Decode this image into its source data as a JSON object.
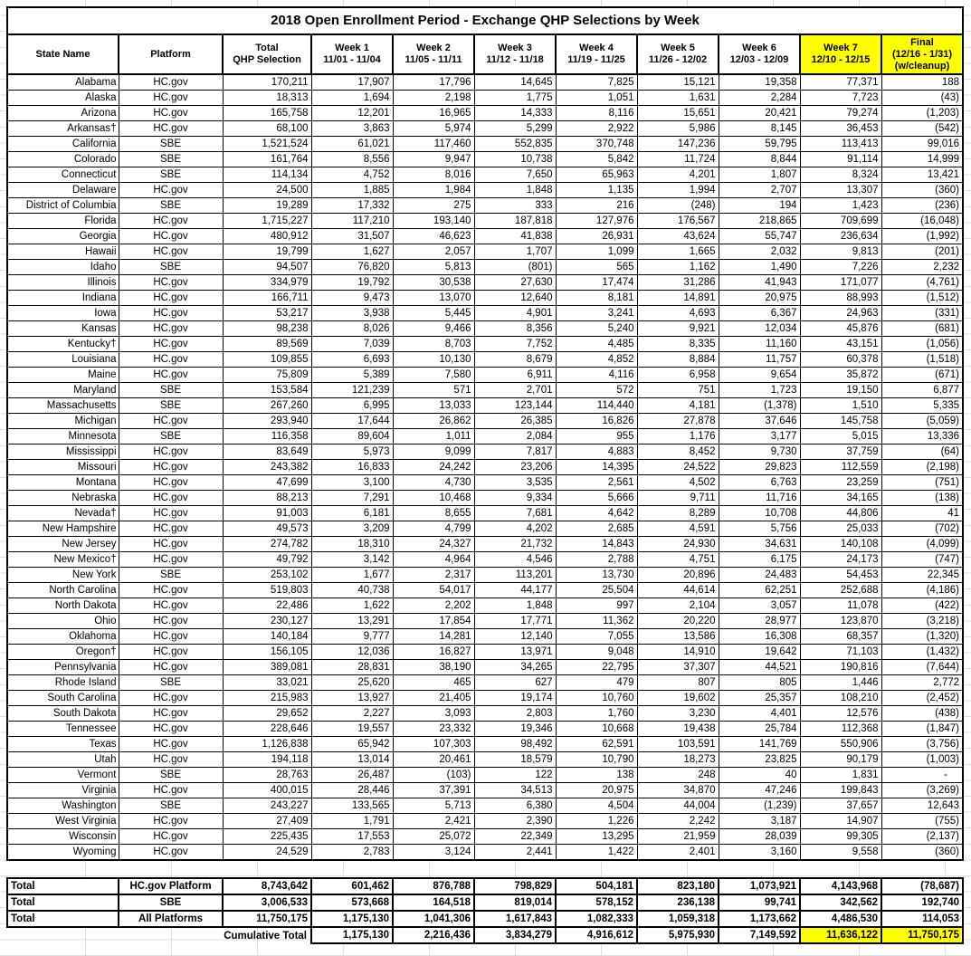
{
  "colors": {
    "highlight": "#ffff00",
    "border": "#000000",
    "gridline": "#dcdcdc",
    "text": "#000000",
    "background": "#ffffff"
  },
  "table": {
    "title": "2018 Open Enrollment Period - Exchange QHP Selections by Week",
    "headers": [
      {
        "lines": [
          "State Name"
        ],
        "highlight": false
      },
      {
        "lines": [
          "Platform"
        ],
        "highlight": false
      },
      {
        "lines": [
          "Total",
          "QHP Selection"
        ],
        "highlight": false
      },
      {
        "lines": [
          "Week 1",
          "11/01 - 11/04"
        ],
        "highlight": false
      },
      {
        "lines": [
          "Week 2",
          "11/05 - 11/11"
        ],
        "highlight": false
      },
      {
        "lines": [
          "Week 3",
          "11/12 - 11/18"
        ],
        "highlight": false
      },
      {
        "lines": [
          "Week 4",
          "11/19 - 11/25"
        ],
        "highlight": false
      },
      {
        "lines": [
          "Week 5",
          "11/26 - 12/02"
        ],
        "highlight": false
      },
      {
        "lines": [
          "Week 6",
          "12/03 - 12/09"
        ],
        "highlight": false
      },
      {
        "lines": [
          "Week 7",
          "12/10 - 12/15"
        ],
        "highlight": true
      },
      {
        "lines": [
          "Final",
          "(12/16 - 1/31)",
          "(w/cleanup)"
        ],
        "highlight": true
      }
    ],
    "rows": [
      {
        "state": "Alabama",
        "platform": "HC.gov",
        "values": [
          "170,211",
          "17,907",
          "17,796",
          "14,645",
          "7,825",
          "15,121",
          "19,358",
          "77,371",
          "188"
        ]
      },
      {
        "state": "Alaska",
        "platform": "HC.gov",
        "values": [
          "18,313",
          "1,694",
          "2,198",
          "1,775",
          "1,051",
          "1,631",
          "2,284",
          "7,723",
          "(43)"
        ]
      },
      {
        "state": "Arizona",
        "platform": "HC.gov",
        "values": [
          "165,758",
          "12,201",
          "16,965",
          "14,333",
          "8,116",
          "15,651",
          "20,421",
          "79,274",
          "(1,203)"
        ]
      },
      {
        "state": "Arkansas†",
        "platform": "HC.gov",
        "values": [
          "68,100",
          "3,863",
          "5,974",
          "5,299",
          "2,922",
          "5,986",
          "8,145",
          "36,453",
          "(542)"
        ]
      },
      {
        "state": "California",
        "platform": "SBE",
        "values": [
          "1,521,524",
          "61,021",
          "117,460",
          "552,835",
          "370,748",
          "147,236",
          "59,795",
          "113,413",
          "99,016"
        ]
      },
      {
        "state": "Colorado",
        "platform": "SBE",
        "values": [
          "161,764",
          "8,556",
          "9,947",
          "10,738",
          "5,842",
          "11,724",
          "8,844",
          "91,114",
          "14,999"
        ]
      },
      {
        "state": "Connecticut",
        "platform": "SBE",
        "values": [
          "114,134",
          "4,752",
          "8,016",
          "7,650",
          "65,963",
          "4,201",
          "1,807",
          "8,324",
          "13,421"
        ]
      },
      {
        "state": "Delaware",
        "platform": "HC.gov",
        "values": [
          "24,500",
          "1,885",
          "1,984",
          "1,848",
          "1,135",
          "1,994",
          "2,707",
          "13,307",
          "(360)"
        ]
      },
      {
        "state": "District of Columbia",
        "platform": "SBE",
        "values": [
          "19,289",
          "17,332",
          "275",
          "333",
          "216",
          "(248)",
          "194",
          "1,423",
          "(236)"
        ]
      },
      {
        "state": "Florida",
        "platform": "HC.gov",
        "values": [
          "1,715,227",
          "117,210",
          "193,140",
          "187,818",
          "127,976",
          "176,567",
          "218,865",
          "709,699",
          "(16,048)"
        ]
      },
      {
        "state": "Georgia",
        "platform": "HC.gov",
        "values": [
          "480,912",
          "31,507",
          "46,623",
          "41,838",
          "26,931",
          "43,624",
          "55,747",
          "236,634",
          "(1,992)"
        ]
      },
      {
        "state": "Hawaii",
        "platform": "HC.gov",
        "values": [
          "19,799",
          "1,627",
          "2,057",
          "1,707",
          "1,099",
          "1,665",
          "2,032",
          "9,813",
          "(201)"
        ]
      },
      {
        "state": "Idaho",
        "platform": "SBE",
        "values": [
          "94,507",
          "76,820",
          "5,813",
          "(801)",
          "565",
          "1,162",
          "1,490",
          "7,226",
          "2,232"
        ]
      },
      {
        "state": "Illinois",
        "platform": "HC.gov",
        "values": [
          "334,979",
          "19,792",
          "30,538",
          "27,630",
          "17,474",
          "31,286",
          "41,943",
          "171,077",
          "(4,761)"
        ]
      },
      {
        "state": "Indiana",
        "platform": "HC.gov",
        "values": [
          "166,711",
          "9,473",
          "13,070",
          "12,640",
          "8,181",
          "14,891",
          "20,975",
          "88,993",
          "(1,512)"
        ]
      },
      {
        "state": "Iowa",
        "platform": "HC.gov",
        "values": [
          "53,217",
          "3,938",
          "5,445",
          "4,901",
          "3,241",
          "4,693",
          "6,367",
          "24,963",
          "(331)"
        ]
      },
      {
        "state": "Kansas",
        "platform": "HC.gov",
        "values": [
          "98,238",
          "8,026",
          "9,466",
          "8,356",
          "5,240",
          "9,921",
          "12,034",
          "45,876",
          "(681)"
        ]
      },
      {
        "state": "Kentucky†",
        "platform": "HC.gov",
        "values": [
          "89,569",
          "7,039",
          "8,703",
          "7,752",
          "4,485",
          "8,335",
          "11,160",
          "43,151",
          "(1,056)"
        ]
      },
      {
        "state": "Louisiana",
        "platform": "HC.gov",
        "values": [
          "109,855",
          "6,693",
          "10,130",
          "8,679",
          "4,852",
          "8,884",
          "11,757",
          "60,378",
          "(1,518)"
        ]
      },
      {
        "state": "Maine",
        "platform": "HC.gov",
        "values": [
          "75,809",
          "5,389",
          "7,580",
          "6,911",
          "4,116",
          "6,958",
          "9,654",
          "35,872",
          "(671)"
        ]
      },
      {
        "state": "Maryland",
        "platform": "SBE",
        "values": [
          "153,584",
          "121,239",
          "571",
          "2,701",
          "572",
          "751",
          "1,723",
          "19,150",
          "6,877"
        ]
      },
      {
        "state": "Massachusetts",
        "platform": "SBE",
        "values": [
          "267,260",
          "6,995",
          "13,033",
          "123,144",
          "114,440",
          "4,181",
          "(1,378)",
          "1,510",
          "5,335"
        ]
      },
      {
        "state": "Michigan",
        "platform": "HC.gov",
        "values": [
          "293,940",
          "17,644",
          "26,862",
          "26,385",
          "16,826",
          "27,878",
          "37,646",
          "145,758",
          "(5,059)"
        ]
      },
      {
        "state": "Minnesota",
        "platform": "SBE",
        "values": [
          "116,358",
          "89,604",
          "1,011",
          "2,084",
          "955",
          "1,176",
          "3,177",
          "5,015",
          "13,336"
        ]
      },
      {
        "state": "Mississippi",
        "platform": "HC.gov",
        "values": [
          "83,649",
          "5,973",
          "9,099",
          "7,817",
          "4,883",
          "8,452",
          "9,730",
          "37,759",
          "(64)"
        ]
      },
      {
        "state": "Missouri",
        "platform": "HC.gov",
        "values": [
          "243,382",
          "16,833",
          "24,242",
          "23,206",
          "14,395",
          "24,522",
          "29,823",
          "112,559",
          "(2,198)"
        ]
      },
      {
        "state": "Montana",
        "platform": "HC.gov",
        "values": [
          "47,699",
          "3,100",
          "4,730",
          "3,535",
          "2,561",
          "4,502",
          "6,763",
          "23,259",
          "(751)"
        ]
      },
      {
        "state": "Nebraska",
        "platform": "HC.gov",
        "values": [
          "88,213",
          "7,291",
          "10,468",
          "9,334",
          "5,666",
          "9,711",
          "11,716",
          "34,165",
          "(138)"
        ]
      },
      {
        "state": "Nevada†",
        "platform": "HC.gov",
        "values": [
          "91,003",
          "6,181",
          "8,655",
          "7,681",
          "4,642",
          "8,289",
          "10,708",
          "44,806",
          "41"
        ]
      },
      {
        "state": "New Hampshire",
        "platform": "HC.gov",
        "values": [
          "49,573",
          "3,209",
          "4,799",
          "4,202",
          "2,685",
          "4,591",
          "5,756",
          "25,033",
          "(702)"
        ]
      },
      {
        "state": "New Jersey",
        "platform": "HC.gov",
        "values": [
          "274,782",
          "18,310",
          "24,327",
          "21,732",
          "14,843",
          "24,930",
          "34,631",
          "140,108",
          "(4,099)"
        ]
      },
      {
        "state": "New Mexico†",
        "platform": "HC.gov",
        "values": [
          "49,792",
          "3,142",
          "4,964",
          "4,546",
          "2,788",
          "4,751",
          "6,175",
          "24,173",
          "(747)"
        ]
      },
      {
        "state": "New York",
        "platform": "SBE",
        "values": [
          "253,102",
          "1,677",
          "2,317",
          "113,201",
          "13,730",
          "20,896",
          "24,483",
          "54,453",
          "22,345"
        ]
      },
      {
        "state": "North Carolina",
        "platform": "HC.gov",
        "values": [
          "519,803",
          "40,738",
          "54,017",
          "44,177",
          "25,504",
          "44,614",
          "62,251",
          "252,688",
          "(4,186)"
        ]
      },
      {
        "state": "North Dakota",
        "platform": "HC.gov",
        "values": [
          "22,486",
          "1,622",
          "2,202",
          "1,848",
          "997",
          "2,104",
          "3,057",
          "11,078",
          "(422)"
        ]
      },
      {
        "state": "Ohio",
        "platform": "HC.gov",
        "values": [
          "230,127",
          "13,291",
          "17,854",
          "17,771",
          "11,362",
          "20,220",
          "28,977",
          "123,870",
          "(3,218)"
        ]
      },
      {
        "state": "Oklahoma",
        "platform": "HC.gov",
        "values": [
          "140,184",
          "9,777",
          "14,281",
          "12,140",
          "7,055",
          "13,586",
          "16,308",
          "68,357",
          "(1,320)"
        ]
      },
      {
        "state": "Oregon†",
        "platform": "HC.gov",
        "values": [
          "156,105",
          "12,036",
          "16,827",
          "13,971",
          "9,048",
          "14,910",
          "19,642",
          "71,103",
          "(1,432)"
        ]
      },
      {
        "state": "Pennsylvania",
        "platform": "HC.gov",
        "values": [
          "389,081",
          "28,831",
          "38,190",
          "34,265",
          "22,795",
          "37,307",
          "44,521",
          "190,816",
          "(7,644)"
        ]
      },
      {
        "state": "Rhode Island",
        "platform": "SBE",
        "values": [
          "33,021",
          "25,620",
          "465",
          "627",
          "479",
          "807",
          "805",
          "1,446",
          "2,772"
        ]
      },
      {
        "state": "South Carolina",
        "platform": "HC.gov",
        "values": [
          "215,983",
          "13,927",
          "21,405",
          "19,174",
          "10,760",
          "19,602",
          "25,357",
          "108,210",
          "(2,452)"
        ]
      },
      {
        "state": "South Dakota",
        "platform": "HC.gov",
        "values": [
          "29,652",
          "2,227",
          "3,093",
          "2,803",
          "1,760",
          "3,230",
          "4,401",
          "12,576",
          "(438)"
        ]
      },
      {
        "state": "Tennessee",
        "platform": "HC.gov",
        "values": [
          "228,646",
          "19,557",
          "23,332",
          "19,346",
          "10,668",
          "19,438",
          "25,784",
          "112,368",
          "(1,847)"
        ]
      },
      {
        "state": "Texas",
        "platform": "HC.gov",
        "values": [
          "1,126,838",
          "65,942",
          "107,303",
          "98,492",
          "62,591",
          "103,591",
          "141,769",
          "550,906",
          "(3,756)"
        ]
      },
      {
        "state": "Utah",
        "platform": "HC.gov",
        "values": [
          "194,118",
          "13,014",
          "20,461",
          "18,579",
          "10,790",
          "18,273",
          "23,825",
          "90,179",
          "(1,003)"
        ]
      },
      {
        "state": "Vermont",
        "platform": "SBE",
        "values": [
          "28,763",
          "26,487",
          "(103)",
          "122",
          "138",
          "248",
          "40",
          "1,831",
          "-"
        ]
      },
      {
        "state": "Virginia",
        "platform": "HC.gov",
        "values": [
          "400,015",
          "28,446",
          "37,391",
          "34,513",
          "20,975",
          "34,870",
          "47,246",
          "199,843",
          "(3,269)"
        ]
      },
      {
        "state": "Washington",
        "platform": "SBE",
        "values": [
          "243,227",
          "133,565",
          "5,713",
          "6,380",
          "4,504",
          "44,004",
          "(1,239)",
          "37,657",
          "12,643"
        ]
      },
      {
        "state": "West Virginia",
        "platform": "HC.gov",
        "values": [
          "27,409",
          "1,791",
          "2,421",
          "2,390",
          "1,226",
          "2,242",
          "3,187",
          "14,907",
          "(755)"
        ]
      },
      {
        "state": "Wisconsin",
        "platform": "HC.gov",
        "values": [
          "225,435",
          "17,553",
          "25,072",
          "22,349",
          "13,295",
          "21,959",
          "28,039",
          "99,305",
          "(2,137)"
        ]
      },
      {
        "state": "Wyoming",
        "platform": "HC.gov",
        "values": [
          "24,529",
          "2,783",
          "3,124",
          "2,441",
          "1,422",
          "2,401",
          "3,160",
          "9,558",
          "(360)"
        ]
      }
    ],
    "totals": [
      {
        "label": "Total",
        "platform": "HC.gov Platform",
        "values": [
          "8,743,642",
          "601,462",
          "876,788",
          "798,829",
          "504,181",
          "823,180",
          "1,073,921",
          "4,143,968",
          "(78,687)"
        ]
      },
      {
        "label": "Total",
        "platform": "SBE",
        "values": [
          "3,006,533",
          "573,668",
          "164,518",
          "819,014",
          "578,152",
          "236,138",
          "99,741",
          "342,562",
          "192,740"
        ]
      },
      {
        "label": "Total",
        "platform": "All Platforms",
        "values": [
          "11,750,175",
          "1,175,130",
          "1,041,306",
          "1,617,843",
          "1,082,333",
          "1,059,318",
          "1,173,662",
          "4,486,530",
          "114,053"
        ]
      }
    ],
    "cumulative": {
      "label": "Cumulative Total",
      "values": [
        "1,175,130",
        "2,216,436",
        "3,834,279",
        "4,916,612",
        "5,975,930",
        "7,149,592",
        "11,636,122",
        "11,750,175"
      ],
      "highlight_last_n": 2
    }
  }
}
